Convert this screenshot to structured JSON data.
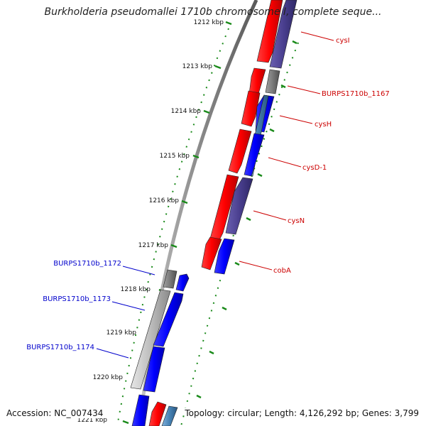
{
  "title": "Burkholderia pseudomallei 1710b chromosome I, complete seque...",
  "footer": {
    "accession": "Accession: NC_007434",
    "summary": "Topology: circular; Length: 4,126,292 bp; Genes: 3,799"
  },
  "ruler": {
    "unit": "kbp",
    "ticks": [
      "1212 kbp",
      "1213 kbp",
      "1214 kbp",
      "1215 kbp",
      "1216 kbp",
      "1217 kbp",
      "1218 kbp",
      "1219 kbp",
      "1220 kbp",
      "1221 kbp"
    ]
  },
  "colors": {
    "forward_cds": "#ff0000",
    "forward_other": "#808080",
    "reverse_cds": "#0000ff",
    "reverse_other": "#4a3f8f",
    "reverse_rna": "#4682b4",
    "label_forward": "#cc0000",
    "label_reverse": "#0000cc",
    "ruler": "#1a8a1a"
  },
  "genes_forward_strand": [
    {
      "label": "cysI",
      "color": "#cc0000"
    },
    {
      "label": "BURPS1710b_1167",
      "color": "#cc0000"
    },
    {
      "label": "cysH",
      "color": "#cc0000"
    },
    {
      "label": "cysD-1",
      "color": "#cc0000"
    },
    {
      "label": "cysN",
      "color": "#cc0000"
    },
    {
      "label": "cobA",
      "color": "#cc0000"
    }
  ],
  "genes_reverse_strand": [
    {
      "label": "BURPS1710b_1172",
      "color": "#0000cc"
    },
    {
      "label": "BURPS1710b_1173",
      "color": "#0000cc"
    },
    {
      "label": "BURPS1710b_1174",
      "color": "#0000cc"
    }
  ]
}
